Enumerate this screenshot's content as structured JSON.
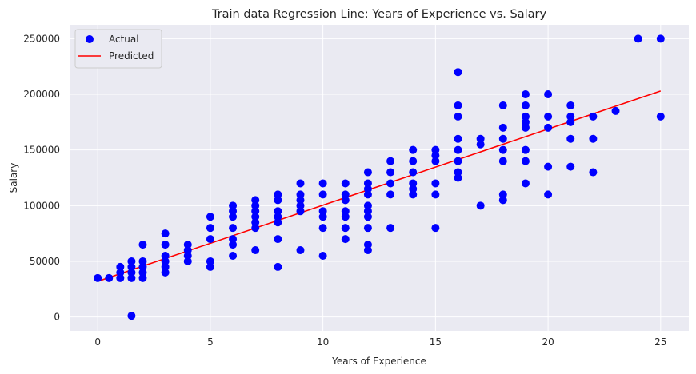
{
  "chart_data": {
    "type": "scatter",
    "title": "Train data Regression Line: Years of Experience vs. Salary",
    "xlabel": "Years of Experience",
    "ylabel": "Salary",
    "xlim": [
      -1.25,
      26.25
    ],
    "ylim": [
      -12500,
      262500
    ],
    "xticks": [
      0,
      5,
      10,
      15,
      20,
      25
    ],
    "yticks": [
      0,
      50000,
      100000,
      150000,
      200000,
      250000
    ],
    "grid": true,
    "legend_position": "top-left",
    "colors": {
      "background": "#eaeaf2",
      "grid": "#ffffff",
      "scatter": "#0000ff",
      "line": "#ff0000"
    },
    "series": [
      {
        "name": "Actual",
        "kind": "scatter",
        "points": [
          [
            0,
            35000
          ],
          [
            0.5,
            35000
          ],
          [
            1,
            35000
          ],
          [
            1,
            40000
          ],
          [
            1,
            45000
          ],
          [
            1.5,
            35000
          ],
          [
            1.5,
            40000
          ],
          [
            1.5,
            45000
          ],
          [
            1.5,
            50000
          ],
          [
            1.5,
            1000
          ],
          [
            2,
            35000
          ],
          [
            2,
            40000
          ],
          [
            2,
            45000
          ],
          [
            2,
            50000
          ],
          [
            2,
            65000
          ],
          [
            3,
            40000
          ],
          [
            3,
            45000
          ],
          [
            3,
            50000
          ],
          [
            3,
            55000
          ],
          [
            3,
            65000
          ],
          [
            3,
            75000
          ],
          [
            4,
            50000
          ],
          [
            4,
            55000
          ],
          [
            4,
            60000
          ],
          [
            4,
            65000
          ],
          [
            5,
            45000
          ],
          [
            5,
            50000
          ],
          [
            5,
            70000
          ],
          [
            5,
            80000
          ],
          [
            5,
            90000
          ],
          [
            6,
            55000
          ],
          [
            6,
            65000
          ],
          [
            6,
            70000
          ],
          [
            6,
            80000
          ],
          [
            6,
            90000
          ],
          [
            6,
            95000
          ],
          [
            6,
            100000
          ],
          [
            7,
            60000
          ],
          [
            7,
            80000
          ],
          [
            7,
            85000
          ],
          [
            7,
            90000
          ],
          [
            7,
            95000
          ],
          [
            7,
            100000
          ],
          [
            7,
            105000
          ],
          [
            8,
            45000
          ],
          [
            8,
            70000
          ],
          [
            8,
            85000
          ],
          [
            8,
            90000
          ],
          [
            8,
            95000
          ],
          [
            8,
            105000
          ],
          [
            8,
            110000
          ],
          [
            9,
            60000
          ],
          [
            9,
            95000
          ],
          [
            9,
            100000
          ],
          [
            9,
            105000
          ],
          [
            9,
            110000
          ],
          [
            9,
            120000
          ],
          [
            10,
            55000
          ],
          [
            10,
            80000
          ],
          [
            10,
            90000
          ],
          [
            10,
            95000
          ],
          [
            10,
            110000
          ],
          [
            10,
            120000
          ],
          [
            11,
            70000
          ],
          [
            11,
            80000
          ],
          [
            11,
            90000
          ],
          [
            11,
            95000
          ],
          [
            11,
            105000
          ],
          [
            11,
            110000
          ],
          [
            11,
            120000
          ],
          [
            12,
            60000
          ],
          [
            12,
            65000
          ],
          [
            12,
            80000
          ],
          [
            12,
            90000
          ],
          [
            12,
            95000
          ],
          [
            12,
            100000
          ],
          [
            12,
            110000
          ],
          [
            12,
            115000
          ],
          [
            12,
            120000
          ],
          [
            12,
            130000
          ],
          [
            13,
            80000
          ],
          [
            13,
            110000
          ],
          [
            13,
            120000
          ],
          [
            13,
            130000
          ],
          [
            13,
            140000
          ],
          [
            14,
            110000
          ],
          [
            14,
            115000
          ],
          [
            14,
            120000
          ],
          [
            14,
            130000
          ],
          [
            14,
            140000
          ],
          [
            14,
            150000
          ],
          [
            15,
            80000
          ],
          [
            15,
            110000
          ],
          [
            15,
            120000
          ],
          [
            15,
            140000
          ],
          [
            15,
            145000
          ],
          [
            15,
            150000
          ],
          [
            16,
            125000
          ],
          [
            16,
            130000
          ],
          [
            16,
            140000
          ],
          [
            16,
            150000
          ],
          [
            16,
            160000
          ],
          [
            16,
            180000
          ],
          [
            16,
            190000
          ],
          [
            16,
            220000
          ],
          [
            17,
            100000
          ],
          [
            17,
            155000
          ],
          [
            17,
            160000
          ],
          [
            18,
            105000
          ],
          [
            18,
            110000
          ],
          [
            18,
            140000
          ],
          [
            18,
            150000
          ],
          [
            18,
            160000
          ],
          [
            18,
            170000
          ],
          [
            18,
            190000
          ],
          [
            19,
            120000
          ],
          [
            19,
            140000
          ],
          [
            19,
            150000
          ],
          [
            19,
            170000
          ],
          [
            19,
            175000
          ],
          [
            19,
            180000
          ],
          [
            19,
            190000
          ],
          [
            19,
            200000
          ],
          [
            20,
            110000
          ],
          [
            20,
            135000
          ],
          [
            20,
            170000
          ],
          [
            20,
            180000
          ],
          [
            20,
            200000
          ],
          [
            21,
            135000
          ],
          [
            21,
            160000
          ],
          [
            21,
            175000
          ],
          [
            21,
            180000
          ],
          [
            21,
            190000
          ],
          [
            22,
            130000
          ],
          [
            22,
            160000
          ],
          [
            22,
            180000
          ],
          [
            23,
            185000
          ],
          [
            24,
            250000
          ],
          [
            25,
            180000
          ],
          [
            25,
            250000
          ]
        ]
      },
      {
        "name": "Predicted",
        "kind": "line",
        "points": [
          [
            0,
            32000
          ],
          [
            25,
            203000
          ]
        ]
      }
    ]
  }
}
